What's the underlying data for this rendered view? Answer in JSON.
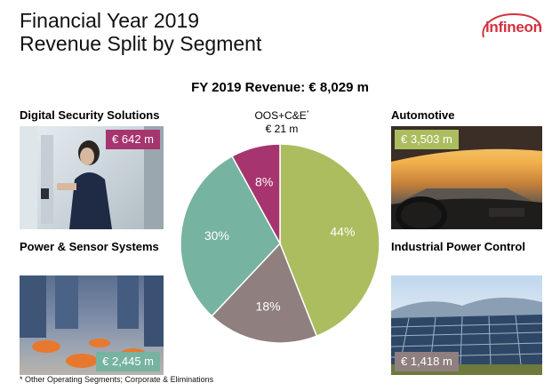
{
  "header": {
    "title_line1": "Financial Year 2019",
    "title_line2": "Revenue Split by Segment",
    "logo_text": "infineon"
  },
  "headline": "FY 2019 Revenue: € 8,029 m",
  "footnote": "* Other Operating Segments; Corporate & Eliminations",
  "segments": {
    "dss": {
      "name": "Digital Security Solutions",
      "revenue": "€ 642 m"
    },
    "auto": {
      "name": "Automotive",
      "revenue": "€ 3,503 m"
    },
    "pss": {
      "name": "Power & Sensor Systems",
      "revenue": "€ 2,445 m"
    },
    "ipc": {
      "name": "Industrial Power Control",
      "revenue": "€ 1,418 m"
    },
    "oos": {
      "name": "OOS+C&E",
      "marker": "*",
      "revenue": "€ 21 m"
    }
  },
  "colors": {
    "automotive": "#abbd5f",
    "ipc": "#8f7f7e",
    "pss": "#76b3a0",
    "dss": "#a6356f",
    "oos": "#d9d9d9",
    "logo": "#d5303e"
  },
  "chart_data": {
    "type": "pie",
    "slices": [
      {
        "segment": "Automotive",
        "value": 44,
        "label": "44%"
      },
      {
        "segment": "Industrial Power Control",
        "value": 18,
        "label": "18%"
      },
      {
        "segment": "Power & Sensor Systems",
        "value": 30,
        "label": "30%"
      },
      {
        "segment": "Digital Security Solutions",
        "value": 8,
        "label": "8%"
      }
    ]
  }
}
